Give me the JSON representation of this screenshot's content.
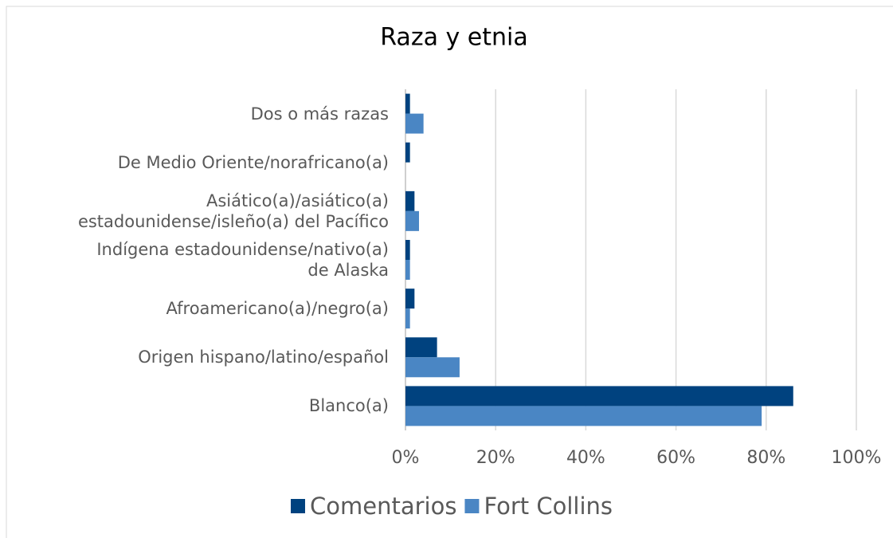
{
  "chart_data": {
    "type": "hbar",
    "title": "Raza y etnia",
    "categories": [
      "Dos o más razas",
      "De Medio Oriente/norafricano(a)",
      "Asiático(a)/asiático(a)\nestadounidense/isleño(a) del Pacífico",
      "Indígena estadounidense/nativo(a)\nde Alaska",
      "Afroamericano(a)/negro(a)",
      "Origen hispano/latino/español",
      "Blanco(a)"
    ],
    "series": [
      {
        "name": "Comentarios",
        "color": "#00427f",
        "values": [
          1,
          1,
          2,
          1,
          2,
          7,
          86
        ]
      },
      {
        "name": "Fort Collins",
        "color": "#4a86c4",
        "values": [
          4,
          0,
          3,
          1,
          1,
          12,
          79
        ]
      }
    ],
    "xlim": [
      0,
      100
    ],
    "xticks": [
      {
        "value": 0,
        "label": "0%"
      },
      {
        "value": 20,
        "label": "20%"
      },
      {
        "value": 40,
        "label": "40%"
      },
      {
        "value": 60,
        "label": "60%"
      },
      {
        "value": 80,
        "label": "80%"
      },
      {
        "value": 100,
        "label": "100%"
      }
    ],
    "grid": true,
    "legend": "bottom"
  }
}
